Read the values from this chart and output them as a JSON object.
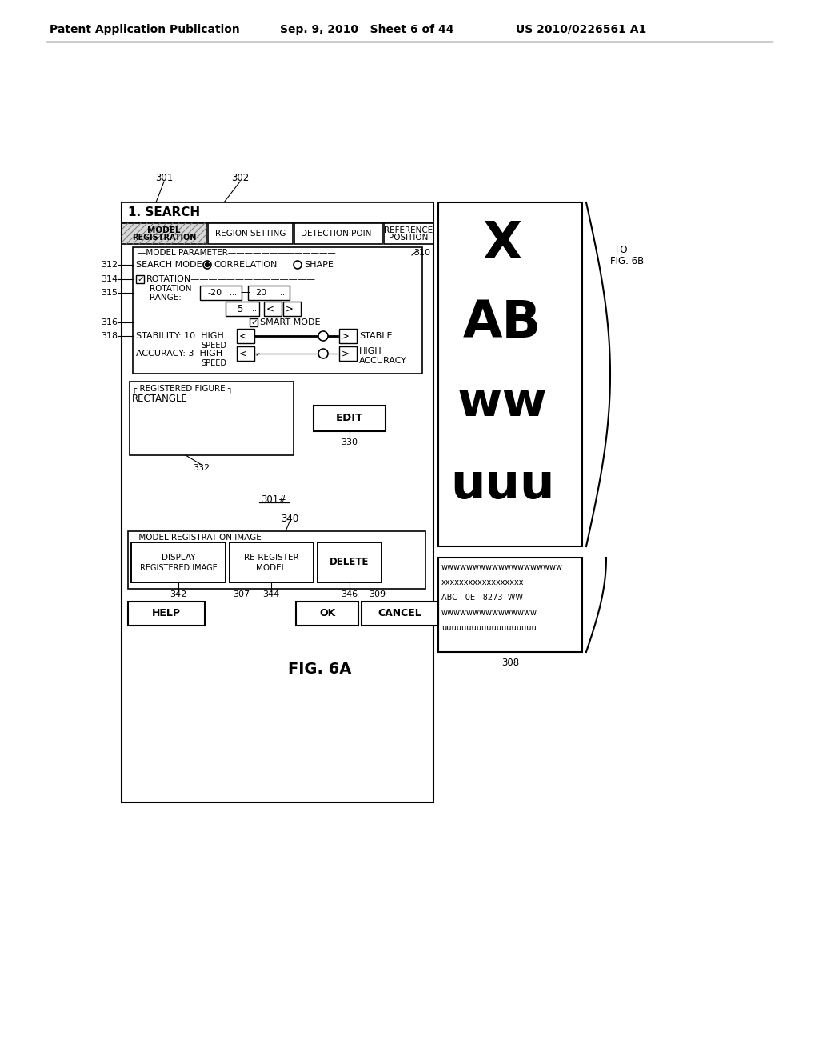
{
  "bg": "#ffffff",
  "header_left": "Patent Application Publication",
  "header_mid": "Sep. 9, 2010   Sheet 6 of 44",
  "header_right": "US 2010/0226561 A1",
  "fig_caption": "FIG. 6A",
  "title": "1. SEARCH",
  "tab2": "REGION SETTING",
  "tab3": "DETECTION POINT",
  "tab4_1": "REFERENCE",
  "tab4_2": "POSITION",
  "ref301": "301",
  "ref302": "302",
  "ref307": "307",
  "ref308": "308",
  "ref309": "309",
  "ref310": "310",
  "ref312": "312",
  "ref314": "314",
  "ref315": "315",
  "ref316": "316",
  "ref318": "318",
  "ref330": "330",
  "ref332": "332",
  "ref301h": "301#",
  "ref340": "340",
  "ref342": "342",
  "ref344": "344",
  "ref346": "346",
  "to_fig6b_1": "TO",
  "to_fig6b_2": "FIG. 6B",
  "img_chars": [
    "X",
    "AB",
    "ww",
    "uuu"
  ],
  "img_small_1": "wwwwwwwwwwwwwwwwwww",
  "img_small_2": "xxxxxxxxxxxxxxxxxx",
  "img_small_3": "ABC - 0E - 8273  WW",
  "img_small_4": "wwwwwwwwwwwwwww",
  "img_small_5": "uuuuuuuuuuuuuuuuuuu"
}
